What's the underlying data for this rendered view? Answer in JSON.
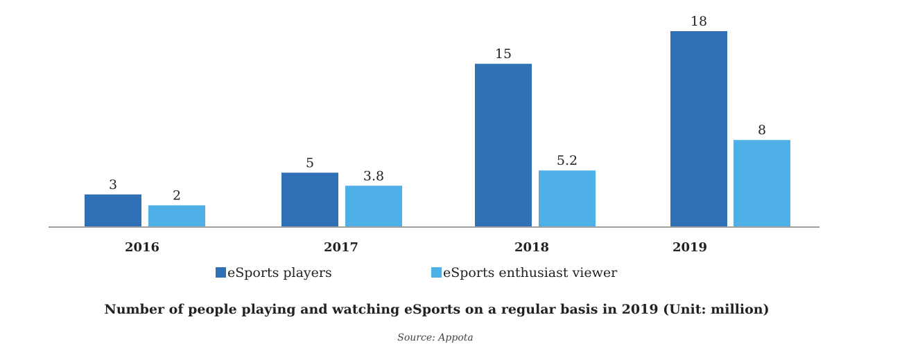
{
  "chart_data": {
    "type": "bar",
    "title": "Number of people playing and watching eSports on a regular basis in 2019 (Unit: million)",
    "source": "Source: Appota",
    "categories": [
      "2016",
      "2017",
      "2018",
      "2019"
    ],
    "series": [
      {
        "name": "eSports players",
        "color": "#2f70b7",
        "values": [
          3,
          5,
          15,
          18
        ],
        "labels": [
          "3",
          "5",
          "15",
          "18"
        ]
      },
      {
        "name": "eSports enthusiast viewer",
        "color": "#4fb0e8",
        "values": [
          2,
          3.8,
          5.2,
          8
        ],
        "labels": [
          "2",
          "3.8",
          "5.2",
          "8"
        ]
      }
    ],
    "ylim": [
      0,
      18
    ],
    "grid": false,
    "legend_placement": "bottom",
    "axis_color": "#a0a0a0"
  }
}
